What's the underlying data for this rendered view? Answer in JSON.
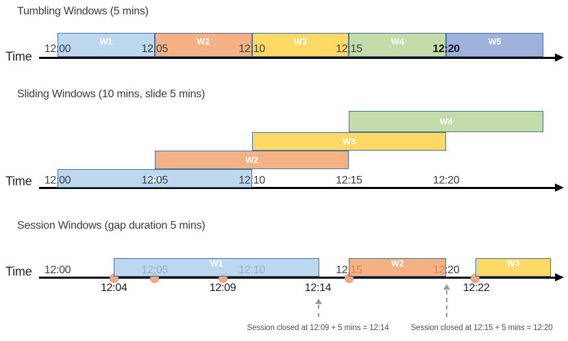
{
  "diagram": {
    "background": "#ffffff",
    "axis_label": "Time",
    "palette": {
      "blue": {
        "fill": "#BDD7EE",
        "overlay": "rgba(173,205,234,0.8)"
      },
      "orange": {
        "fill": "#F4B183",
        "overlay": "rgba(241,158,100,0.8)"
      },
      "yellow": {
        "fill": "#FFD966",
        "overlay": "rgba(255,208,64,0.8)"
      },
      "green": {
        "fill": "#C3DCA9"
      },
      "periwinkle": {
        "fill": "#9DB3DC"
      },
      "window_border": "#41719C",
      "window_label_text": "#FFFFFF",
      "axis_color": "#000000",
      "title_text": "#3A3A3A",
      "time_label_text": "#1F1F1F",
      "tick_text": "#3F3F3F",
      "tick_text_emphasis": "#141414",
      "event_dot_fill": "#F2A985",
      "event_dot_border": "#DE8B61",
      "event_label_text": "#1A1A1A",
      "annotation_text": "#4F4F4F",
      "dashed_arrow": "#9A9A9A"
    },
    "sections": [
      {
        "id": "tumbling",
        "title": "Tumbling Windows (5 mins)",
        "ticks": [
          {
            "label": "12:00",
            "min": 0
          },
          {
            "label": "12:05",
            "min": 5
          },
          {
            "label": "12:10",
            "min": 10
          },
          {
            "label": "12:15",
            "min": 15
          },
          {
            "label": "12:20",
            "min": 20,
            "emphasis": true
          }
        ],
        "windows": [
          {
            "label": "W1",
            "color": "blue",
            "start_min": 0,
            "end_min": 5
          },
          {
            "label": "W2",
            "color": "orange",
            "start_min": 5,
            "end_min": 10
          },
          {
            "label": "W3",
            "color": "yellow",
            "start_min": 10,
            "end_min": 15
          },
          {
            "label": "W4",
            "color": "green",
            "start_min": 15,
            "end_min": 20
          },
          {
            "label": "W5",
            "color": "periwinkle",
            "start_min": 20,
            "end_min": 25
          }
        ]
      },
      {
        "id": "sliding",
        "title": "Sliding Windows (10 mins, slide 5 mins)",
        "ticks": [
          {
            "label": "12:00",
            "min": 0
          },
          {
            "label": "12:05",
            "min": 5
          },
          {
            "label": "12:10",
            "min": 10
          },
          {
            "label": "12:15",
            "min": 15
          },
          {
            "label": "12:20",
            "min": 20
          }
        ],
        "windows": [
          {
            "label": "W1",
            "color": "blue",
            "start_min": 0,
            "end_min": 10,
            "row": 0
          },
          {
            "label": "W2",
            "color": "orange",
            "start_min": 5,
            "end_min": 15,
            "row": 1
          },
          {
            "label": "W3",
            "color": "yellow",
            "start_min": 10,
            "end_min": 20,
            "row": 2
          },
          {
            "label": "W4",
            "color": "green",
            "start_min": 15,
            "end_min": 25,
            "row": 3
          }
        ]
      },
      {
        "id": "session",
        "title": "Session Windows (gap duration 5 mins)",
        "ticks": [
          {
            "label": "12:00",
            "min": 0
          },
          {
            "label": "12:05",
            "min": 5
          },
          {
            "label": "12:10",
            "min": 10
          },
          {
            "label": "12:15",
            "min": 15
          },
          {
            "label": "12:20",
            "min": 20
          }
        ],
        "windows": [
          {
            "label": "W1",
            "color": "blue",
            "start_min": 2.9,
            "end_min": 13.47,
            "translucent": true
          },
          {
            "label": "W2",
            "color": "orange",
            "start_min": 15,
            "end_min": 20,
            "translucent": true
          },
          {
            "label": "W3",
            "color": "yellow",
            "start_min": 21.5,
            "end_min": 25.4,
            "translucent": true
          }
        ],
        "events": [
          {
            "min": 2.9
          },
          {
            "min": 5.0
          },
          {
            "min": 8.5
          },
          {
            "min": 15.02
          },
          {
            "min": 21.5
          }
        ],
        "event_labels": [
          {
            "label": "12:04",
            "min": 2.9
          },
          {
            "label": "12:09",
            "min": 8.5
          },
          {
            "label": "12:14",
            "min": 13.4
          },
          {
            "label": "12:22",
            "min": 21.55
          }
        ],
        "annotations": [
          {
            "text": "Session closed at 12:09 + 5 mins = 12:14",
            "min": 13.4,
            "arrow_min": 13.43
          },
          {
            "text": "Session closed at 12:15 + 5 mins = 12:20",
            "min": 21.83,
            "arrow_min": 20.02
          }
        ]
      }
    ]
  }
}
